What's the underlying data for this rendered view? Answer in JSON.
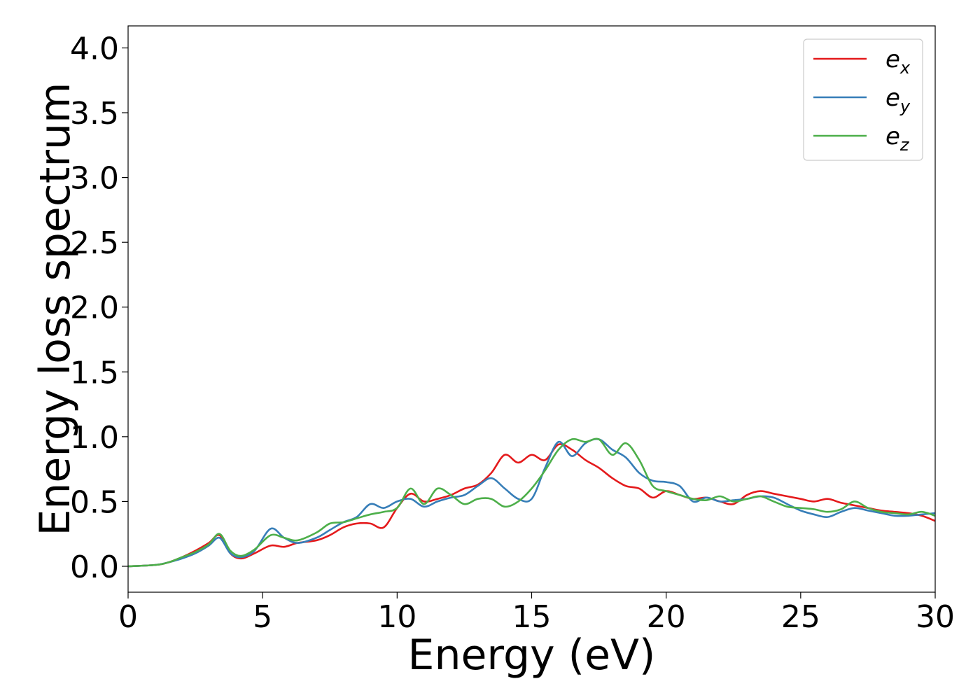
{
  "chart_data": {
    "type": "line",
    "title": "",
    "xlabel": "Energy (eV)",
    "ylabel": "Energy loss spectrum",
    "xlim": [
      0,
      30
    ],
    "ylim": [
      -0.2,
      4.17
    ],
    "xticks": [
      0,
      5,
      10,
      15,
      20,
      25,
      30
    ],
    "xtick_labels": [
      "0",
      "5",
      "10",
      "15",
      "20",
      "25",
      "30"
    ],
    "yticks": [
      0.0,
      0.5,
      1.0,
      1.5,
      2.0,
      2.5,
      3.0,
      3.5,
      4.0
    ],
    "ytick_labels": [
      "0.0",
      "0.5",
      "1.0",
      "1.5",
      "2.0",
      "2.5",
      "3.0",
      "3.5",
      "4.0"
    ],
    "grid": false,
    "legend_position": "top-right",
    "series": [
      {
        "name": "e_x",
        "label_base": "e",
        "label_sub": "x",
        "color": "#e41a1c",
        "x": [
          0,
          1,
          1.5,
          2,
          2.5,
          3,
          3.4,
          3.8,
          4.2,
          4.7,
          5.3,
          5.8,
          6.3,
          7,
          7.5,
          8,
          8.5,
          9,
          9.5,
          10,
          10.5,
          11,
          11.5,
          12,
          12.5,
          13,
          13.5,
          14,
          14.5,
          15,
          15.5,
          16,
          16.5,
          17,
          17.5,
          18,
          18.5,
          19,
          19.5,
          20,
          20.5,
          21,
          21.5,
          22,
          22.5,
          23,
          23.5,
          24,
          24.5,
          25,
          25.5,
          26,
          26.5,
          27,
          27.5,
          28,
          28.5,
          29,
          29.5,
          30
        ],
        "y": [
          0,
          0.01,
          0.03,
          0.07,
          0.12,
          0.18,
          0.24,
          0.1,
          0.06,
          0.1,
          0.16,
          0.15,
          0.18,
          0.2,
          0.24,
          0.3,
          0.33,
          0.33,
          0.3,
          0.45,
          0.56,
          0.5,
          0.52,
          0.55,
          0.6,
          0.63,
          0.72,
          0.86,
          0.8,
          0.86,
          0.82,
          0.94,
          0.9,
          0.82,
          0.76,
          0.68,
          0.62,
          0.6,
          0.53,
          0.58,
          0.55,
          0.52,
          0.53,
          0.5,
          0.48,
          0.55,
          0.58,
          0.56,
          0.54,
          0.52,
          0.5,
          0.52,
          0.49,
          0.47,
          0.45,
          0.43,
          0.42,
          0.41,
          0.39,
          0.35
        ]
      },
      {
        "name": "e_y",
        "label_base": "e",
        "label_sub": "y",
        "color": "#377eb8",
        "x": [
          0,
          1,
          1.5,
          2,
          2.5,
          3,
          3.4,
          3.8,
          4.2,
          4.7,
          5.3,
          5.8,
          6.3,
          7,
          7.5,
          8,
          8.5,
          9,
          9.5,
          10,
          10.5,
          11,
          11.5,
          12,
          12.5,
          13,
          13.5,
          14,
          14.5,
          15,
          15.5,
          16,
          16.5,
          17,
          17.5,
          18,
          18.5,
          19,
          19.5,
          20,
          20.5,
          21,
          21.5,
          22,
          22.5,
          23,
          23.5,
          24,
          24.5,
          25,
          25.5,
          26,
          26.5,
          27,
          27.5,
          28,
          28.5,
          29,
          29.5,
          30
        ],
        "y": [
          0,
          0.01,
          0.03,
          0.06,
          0.1,
          0.16,
          0.22,
          0.1,
          0.07,
          0.12,
          0.29,
          0.22,
          0.18,
          0.22,
          0.28,
          0.34,
          0.38,
          0.48,
          0.45,
          0.5,
          0.52,
          0.46,
          0.5,
          0.53,
          0.55,
          0.62,
          0.68,
          0.6,
          0.52,
          0.52,
          0.76,
          0.96,
          0.85,
          0.95,
          0.98,
          0.9,
          0.84,
          0.72,
          0.66,
          0.65,
          0.62,
          0.5,
          0.53,
          0.5,
          0.51,
          0.52,
          0.54,
          0.53,
          0.48,
          0.43,
          0.4,
          0.38,
          0.42,
          0.45,
          0.43,
          0.41,
          0.39,
          0.39,
          0.4,
          0.41
        ]
      },
      {
        "name": "e_z",
        "label_base": "e",
        "label_sub": "z",
        "color": "#4daf4a",
        "x": [
          0,
          1,
          1.5,
          2,
          2.5,
          3,
          3.4,
          3.8,
          4.2,
          4.7,
          5.3,
          5.8,
          6.3,
          7,
          7.5,
          8,
          8.5,
          9,
          9.5,
          10,
          10.5,
          11,
          11.5,
          12,
          12.5,
          13,
          13.5,
          14,
          14.5,
          15,
          15.5,
          16,
          16.5,
          17,
          17.5,
          18,
          18.5,
          19,
          19.5,
          20,
          20.5,
          21,
          21.5,
          22,
          22.5,
          23,
          23.5,
          24,
          24.5,
          25,
          25.5,
          26,
          26.5,
          27,
          27.5,
          28,
          28.5,
          29,
          29.5,
          30
        ],
        "y": [
          0,
          0.01,
          0.03,
          0.07,
          0.11,
          0.17,
          0.25,
          0.12,
          0.08,
          0.13,
          0.24,
          0.22,
          0.2,
          0.26,
          0.33,
          0.34,
          0.37,
          0.4,
          0.42,
          0.45,
          0.6,
          0.48,
          0.6,
          0.55,
          0.48,
          0.52,
          0.52,
          0.46,
          0.5,
          0.6,
          0.74,
          0.9,
          0.98,
          0.96,
          0.98,
          0.86,
          0.95,
          0.82,
          0.62,
          0.58,
          0.55,
          0.52,
          0.51,
          0.54,
          0.5,
          0.52,
          0.54,
          0.5,
          0.46,
          0.45,
          0.44,
          0.42,
          0.44,
          0.5,
          0.45,
          0.42,
          0.41,
          0.4,
          0.42,
          0.39
        ]
      }
    ]
  }
}
